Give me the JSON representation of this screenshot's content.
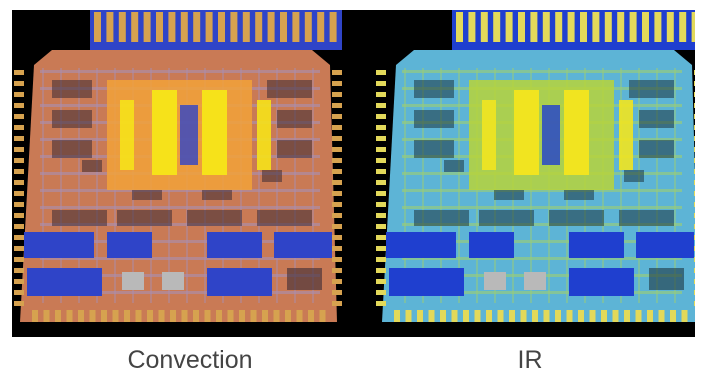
{
  "captions": {
    "left": "Convection",
    "right": "IR"
  },
  "panels": [
    {
      "id": "convection",
      "palette": {
        "base": "#d98a5f",
        "board": "#c97a55",
        "trace": "#a98fb4",
        "blue": "#2f44c8",
        "hot": "#f6e21a",
        "warm": "#f2a23a",
        "gold": "#d6a24f",
        "shadow": "#3a2a35"
      }
    },
    {
      "id": "ir",
      "palette": {
        "base": "#4ea3c9",
        "board": "#5db4d6",
        "trace": "#9fcf6f",
        "blue": "#1f3fcf",
        "hot": "#f1e420",
        "warm": "#b7d43a",
        "gold": "#e3d95a",
        "shadow": "#1c3540"
      }
    }
  ]
}
